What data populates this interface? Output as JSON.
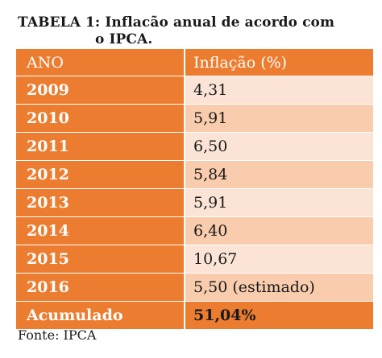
{
  "title": {
    "line1": "TABELA 1: Inflacão anual de acordo com",
    "line2": "o IPCA."
  },
  "table": {
    "headers": [
      "ANO",
      "Inflação (%)"
    ],
    "rows": [
      {
        "year": "2009",
        "value": "4,31"
      },
      {
        "year": "2010",
        "value": "5,91"
      },
      {
        "year": "2011",
        "value": "6,50"
      },
      {
        "year": "2012",
        "value": "5,84"
      },
      {
        "year": "2013",
        "value": "5,91"
      },
      {
        "year": "2014",
        "value": "6,40"
      },
      {
        "year": "2015",
        "value": "10,67"
      },
      {
        "year": "2016",
        "value": "5,50 (estimado)"
      }
    ],
    "total": {
      "label": "Acumulado",
      "value": "51,04%"
    }
  },
  "source": "Fonte: IPCA",
  "colors": {
    "header_bg": "#ec7d30",
    "row_odd_bg": "#f8ccac",
    "row_even_bg": "#fbe4d5"
  }
}
